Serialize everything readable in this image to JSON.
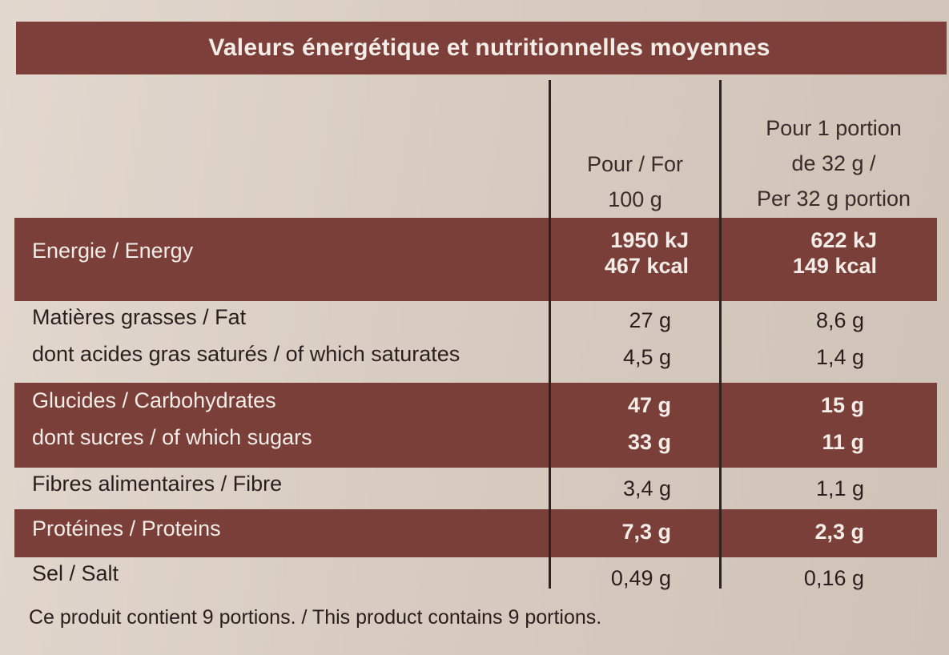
{
  "title": "Valeurs énergétique et nutritionnelles moyennes",
  "columns": {
    "per100": [
      "Pour / For",
      "100 g"
    ],
    "perPortion": [
      "Pour 1 portion",
      "de 32 g /",
      "Per 32 g portion"
    ]
  },
  "rows": [
    {
      "label": "Energie / Energy",
      "per100": [
        "1950 kJ",
        "467 kcal"
      ],
      "perPortion": [
        "622 kJ",
        "149 kcal"
      ]
    },
    {
      "label": "Matières grasses / Fat",
      "per100": "27 g",
      "perPortion": "8,6 g"
    },
    {
      "label": "dont acides gras saturés / of which saturates",
      "per100": "4,5 g",
      "perPortion": "1,4 g"
    },
    {
      "label": "Glucides / Carbohydrates",
      "per100": "47 g",
      "perPortion": "15 g"
    },
    {
      "label": "dont sucres / of which sugars",
      "per100": "33 g",
      "perPortion": "11 g"
    },
    {
      "label": "Fibres alimentaires / Fibre",
      "per100": "3,4 g",
      "perPortion": "1,1 g"
    },
    {
      "label": "Protéines / Proteins",
      "per100": "7,3 g",
      "perPortion": "2,3 g"
    },
    {
      "label": "Sel / Salt",
      "per100": "0,49 g",
      "perPortion": "0,16 g"
    }
  ],
  "footer": "Ce produit contient 9 portions. / This product contains 9 portions.",
  "colors": {
    "band": "#7b3f39",
    "background": "#d9cdc3",
    "text": "#2a1f1c"
  }
}
